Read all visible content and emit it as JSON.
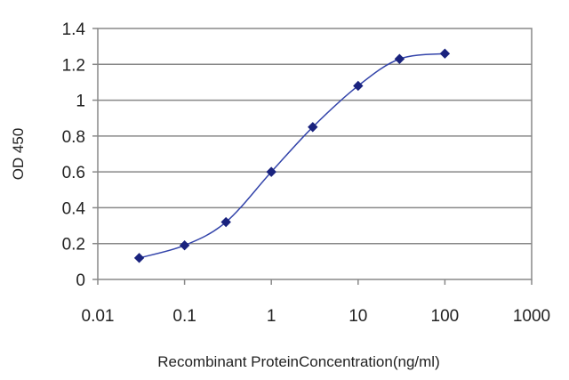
{
  "chart_data": {
    "type": "line",
    "title": "",
    "xlabel": "Recombinant ProteinConcentration(ng/ml)",
    "ylabel": "OD 450",
    "x_scale": "log",
    "xlim": [
      0.01,
      1000
    ],
    "ylim": [
      0,
      1.4
    ],
    "x_ticks": [
      0.01,
      0.1,
      1,
      10,
      100,
      1000
    ],
    "x_tick_labels": [
      "0.01",
      "0.1",
      "1",
      "10",
      "100",
      "1000"
    ],
    "y_ticks": [
      0,
      0.2,
      0.4,
      0.6,
      0.8,
      1,
      1.2,
      1.4
    ],
    "y_tick_labels": [
      "0",
      "0.2",
      "0.4",
      "0.6",
      "0.8",
      "1",
      "1.2",
      "1.4"
    ],
    "grid": "horizontal",
    "legend": "none",
    "series": [
      {
        "color": "#3344aa",
        "marker_color": "#1a237e",
        "x": [
          0.03,
          0.1,
          0.3,
          1,
          3,
          10,
          30,
          100
        ],
        "y": [
          0.12,
          0.19,
          0.32,
          0.6,
          0.85,
          1.08,
          1.23,
          1.26
        ]
      }
    ]
  }
}
